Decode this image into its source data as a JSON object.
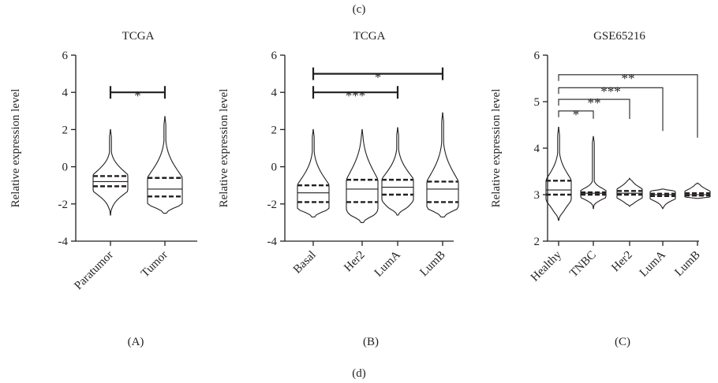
{
  "figure": {
    "top_caption": "(c)",
    "bottom_caption": "(d)"
  },
  "chart_data": [
    {
      "type": "violin",
      "panel_label": "(A)",
      "title": "TCGA",
      "xlabel": "",
      "ylabel": "Relative expression level",
      "ylim": [
        -4,
        6
      ],
      "yticks": [
        -4,
        -2,
        0,
        2,
        4,
        6
      ],
      "categories": [
        "Paratumor",
        "Tumor"
      ],
      "series": [
        {
          "category": "Paratumor",
          "min": -2.6,
          "q1": -1.05,
          "median": -0.8,
          "q3": -0.5,
          "max": 2.0
        },
        {
          "category": "Tumor",
          "min": -2.5,
          "q1": -1.6,
          "median": -1.2,
          "q3": -0.6,
          "max": 2.7
        }
      ],
      "significance": [
        {
          "from": "Paratumor",
          "to": "Tumor",
          "label": "*",
          "y": 4.0
        }
      ],
      "grid": false
    },
    {
      "type": "violin",
      "panel_label": "(B)",
      "title": "TCGA",
      "xlabel": "",
      "ylabel": "Relative expression level",
      "ylim": [
        -4,
        6
      ],
      "yticks": [
        -4,
        -2,
        0,
        2,
        4,
        6
      ],
      "categories": [
        "Basal",
        "Her2",
        "LumA",
        "LumB"
      ],
      "series": [
        {
          "category": "Basal",
          "min": -2.7,
          "q1": -1.9,
          "median": -1.4,
          "q3": -1.0,
          "max": 2.0
        },
        {
          "category": "Her2",
          "min": -3.0,
          "q1": -1.9,
          "median": -1.2,
          "q3": -0.7,
          "max": 2.0
        },
        {
          "category": "LumA",
          "min": -2.6,
          "q1": -1.5,
          "median": -1.1,
          "q3": -0.7,
          "max": 2.1
        },
        {
          "category": "LumB",
          "min": -2.7,
          "q1": -1.9,
          "median": -1.2,
          "q3": -0.8,
          "max": 2.9
        }
      ],
      "significance": [
        {
          "from": "Basal",
          "to": "LumB",
          "label": "*",
          "y": 5.0
        },
        {
          "from": "Basal",
          "to": "LumA",
          "label": "***",
          "y": 4.0
        }
      ],
      "grid": false
    },
    {
      "type": "violin",
      "panel_label": "(C)",
      "title": "GSE65216",
      "xlabel": "",
      "ylabel": "Relative expression level",
      "ylim": [
        2,
        6
      ],
      "yticks": [
        2,
        3,
        4,
        5,
        6
      ],
      "categories": [
        "Healthy",
        "TNBC",
        "Her2",
        "LumA",
        "LumB"
      ],
      "series": [
        {
          "category": "Healthy",
          "min": 2.45,
          "q1": 3.0,
          "median": 3.1,
          "q3": 3.3,
          "max": 4.45
        },
        {
          "category": "TNBC",
          "min": 2.7,
          "q1": 3.0,
          "median": 3.03,
          "q3": 3.05,
          "max": 4.25
        },
        {
          "category": "Her2",
          "min": 2.75,
          "q1": 3.0,
          "median": 3.03,
          "q3": 3.08,
          "max": 3.35
        },
        {
          "category": "LumA",
          "min": 2.7,
          "q1": 2.97,
          "median": 3.0,
          "q3": 3.02,
          "max": 3.12
        },
        {
          "category": "LumB",
          "min": 2.92,
          "q1": 2.98,
          "median": 3.0,
          "q3": 3.03,
          "max": 3.25
        }
      ],
      "significance": [
        {
          "from": "Healthy",
          "to": "TNBC",
          "label": "*",
          "y": 4.8
        },
        {
          "from": "Healthy",
          "to": "Her2",
          "label": "**",
          "y": 5.05
        },
        {
          "from": "Healthy",
          "to": "LumA",
          "label": "***",
          "y": 5.3
        },
        {
          "from": "Healthy",
          "to": "LumB",
          "label": "**",
          "y": 5.58
        }
      ],
      "grid": false
    }
  ]
}
